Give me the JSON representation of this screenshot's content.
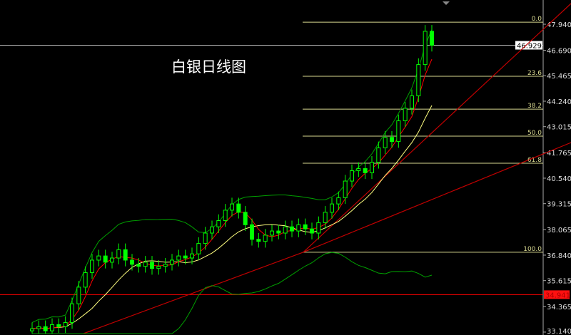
{
  "title": "白银日线图",
  "chart_data": {
    "type": "candlestick",
    "title": "白银日线图",
    "y_ticks": [
      "47.940",
      "46.690",
      "45.465",
      "44.240",
      "43.015",
      "41.765",
      "40.540",
      "39.315",
      "38.065",
      "36.840",
      "35.615",
      "34.365",
      "33.140"
    ],
    "ylim": [
      33.0,
      48.9
    ],
    "closes": [
      33.3,
      33.4,
      33.2,
      33.5,
      33.4,
      33.6,
      34.5,
      35.3,
      36.0,
      36.6,
      36.8,
      36.5,
      36.7,
      37.1,
      36.6,
      36.4,
      36.3,
      36.5,
      36.2,
      36.3,
      36.4,
      36.6,
      36.8,
      36.7,
      36.9,
      37.4,
      37.9,
      38.2,
      38.5,
      39.0,
      39.3,
      38.9,
      38.3,
      37.6,
      37.5,
      37.8,
      38.0,
      37.9,
      38.2,
      38.0,
      38.3,
      38.1,
      37.9,
      38.4,
      38.9,
      39.3,
      39.6,
      40.4,
      40.9,
      41.0,
      40.8,
      41.3,
      42.0,
      42.5,
      42.3,
      43.3,
      43.9,
      44.5,
      46.0,
      47.6,
      46.93
    ],
    "current_price": "46.929",
    "support_line": {
      "price": 34.94,
      "label": "34.941",
      "color": "#ff0000"
    },
    "fibonacci": [
      {
        "label": "0.0",
        "price": 48.04
      },
      {
        "label": "23.6",
        "price": 45.44
      },
      {
        "label": "38.2",
        "price": 43.86
      },
      {
        "label": "50.0",
        "price": 42.56
      },
      {
        "label": "61.8",
        "price": 41.26
      },
      {
        "label": "100.0",
        "price": 36.98
      }
    ],
    "colors": {
      "candle": "#00ff00",
      "ma_fast": "#ff0000",
      "ma_slow": "#ffff80",
      "bollinger": "#00a000",
      "fib": "#d8d890",
      "trendline": "#c00000",
      "grid_axis": "#aaaaaa"
    }
  }
}
